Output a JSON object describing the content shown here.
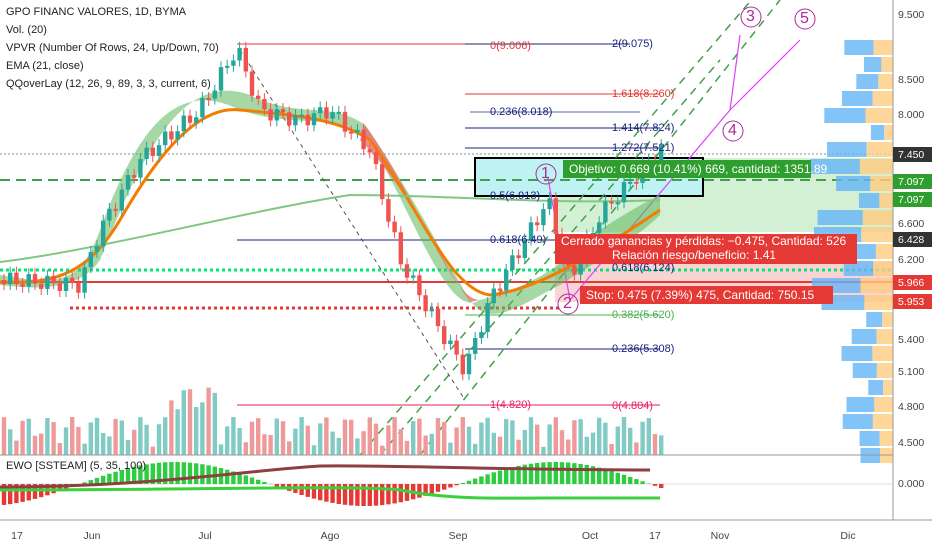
{
  "header": {
    "symbol": "GPO FINANC VALORES, 1D, BYMA",
    "indicators": [
      "Vol. (20)",
      "VPVR (Number Of Rows, 24, Up/Down, 70)",
      "EMA (21, close)",
      "QQoverLay (12, 26, 9, 89, 3, 3, current, 6)"
    ]
  },
  "price_axis": {
    "ticks": [
      "9.500",
      "8.500",
      "8.000",
      "6.600",
      "6.200",
      "5.400",
      "5.100",
      "4.800",
      "4.500"
    ],
    "tags": [
      "7.450",
      "7.097",
      "7.097",
      "6.428",
      "5.966",
      "5.953"
    ]
  },
  "time_axis": [
    "17",
    "Jun",
    "Jul",
    "Ago",
    "Sep",
    "Oct",
    "17",
    "Nov",
    "Dic"
  ],
  "fib_left": [
    "0(9.006)",
    "0.236(8.018)",
    "0.5(6.913)",
    "0.618(6.49)",
    "1(4.820)"
  ],
  "fib_right": [
    "2(9.075)",
    "1.618(8.260)",
    "1.414(7.824)",
    "1.272(7.521)",
    "0.618(6.124)",
    "0.382(5.620)",
    "0.236(5.308)",
    "0(4.804)"
  ],
  "position": {
    "target": "Objetivo: 0.669 (10.41%) 669, cantidad: 1351.89",
    "closed": "Cerrado ganancias y pérdidas: −0.475, Cantidad: 526",
    "ratio": "Relación riesgo/beneficio: 1.41",
    "stop": "Stop: 0.475 (7.39%) 475, Cantidad: 750.15"
  },
  "waves": [
    "1",
    "2",
    "3",
    "4",
    "5"
  ],
  "ewo": {
    "title": "EWO [SSTEAM] (5, 35, 100)",
    "axis": "0.000"
  }
}
